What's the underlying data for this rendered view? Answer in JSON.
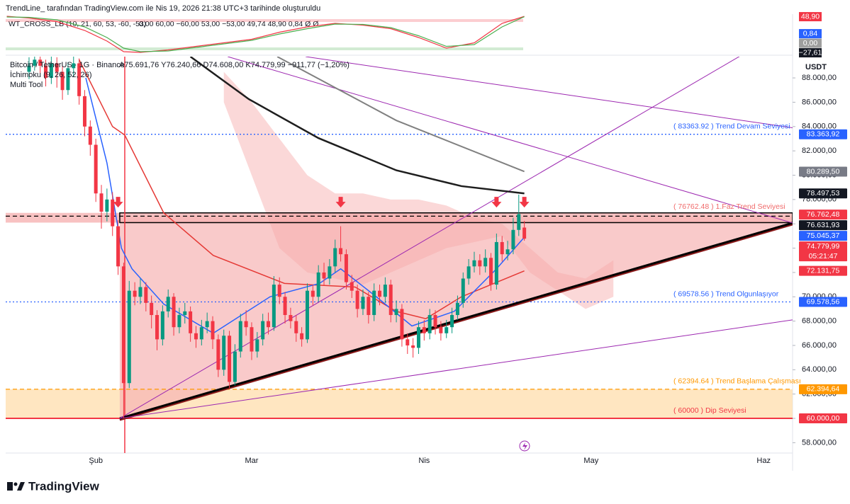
{
  "header": {
    "credit": "TrendLine_ tarafından TradingView.com ile Nis 19, 2026 21:38 UTC+3 tarihinde oluşturuldu",
    "logo": "TradingView"
  },
  "indicator": {
    "title": "WT_CROSS_LB (10, 21, 60, 53, -60, -53)",
    "readout": "0,00  60,00  −60,00  53,00  −53,00  49,74  48,90  0,84  Ø  Ø",
    "ylim": [
      -56,
      56
    ],
    "x": [
      -4,
      0,
      5,
      10,
      14,
      17,
      20,
      25,
      30,
      35,
      40,
      45,
      50,
      55,
      60,
      65,
      70,
      75,
      80,
      85,
      89
    ],
    "series": [
      {
        "color": "#f23645",
        "values": [
          50,
          45,
          35,
          10,
          -20,
          -50,
          -52,
          -45,
          -35,
          -25,
          -15,
          5,
          20,
          30,
          25,
          15,
          -10,
          -40,
          -25,
          30,
          49.74
        ]
      },
      {
        "color": "#4caf50",
        "values": [
          48,
          47,
          40,
          20,
          -10,
          -40,
          -50,
          -48,
          -38,
          -28,
          -18,
          0,
          15,
          28,
          27,
          18,
          -5,
          -35,
          -30,
          20,
          48.9
        ]
      }
    ],
    "axis_labels": [
      {
        "value": 48.9,
        "label": "48,90",
        "color": "#f23645"
      },
      {
        "value": 0.84,
        "label": "0,84",
        "color": "#2962ff"
      },
      {
        "value": 0,
        "label": "0,00",
        "color": "#9e9e9e"
      },
      {
        "value": -27.61,
        "label": "−27,61",
        "color": "#131722"
      }
    ]
  },
  "chart_data": {
    "type": "candlestick",
    "symbol": "Bitcoin / TetherUS · 1G · Binance",
    "ohlc_readout": "A75.691,76  Y76.240,66  D74.608,00  K74.779,99  −911,77 (−1,20%)",
    "indicators": [
      "İchimoku (9, 26, 52, 26)",
      "Multi Tool"
    ],
    "currency": "USDT",
    "up_color": "#089981",
    "down_color": "#f23645",
    "xlim": [
      -4.2,
      137.2
    ],
    "ylim": [
      57150,
      89750
    ],
    "grid": false,
    "xticks": [
      {
        "value": 12,
        "label": "Şub"
      },
      {
        "value": 40,
        "label": "Mar"
      },
      {
        "value": 71,
        "label": "Nis"
      },
      {
        "value": 101,
        "label": "May"
      },
      {
        "value": 132,
        "label": "Haz"
      }
    ],
    "yticks": [
      {
        "value": 58000,
        "label": "58.000,00"
      },
      {
        "value": 60000,
        "label": "60.000,00"
      },
      {
        "value": 62000,
        "label": "62.000,00"
      },
      {
        "value": 64000,
        "label": "64.000,00"
      },
      {
        "value": 66000,
        "label": "66.000,00"
      },
      {
        "value": 68000,
        "label": "68.000,00"
      },
      {
        "value": 70000,
        "label": "70.000,00"
      },
      {
        "value": 72000,
        "label": "72.000,00"
      },
      {
        "value": 74000,
        "label": "74.000,00"
      },
      {
        "value": 76000,
        "label": "76.000,00"
      },
      {
        "value": 78000,
        "label": "78.000,00"
      },
      {
        "value": 80000,
        "label": "80.000,00"
      },
      {
        "value": 82000,
        "label": "82.000,00"
      },
      {
        "value": 84000,
        "label": "84.000,00"
      },
      {
        "value": 86000,
        "label": "86.000,00"
      },
      {
        "value": 88000,
        "label": "88.000,00"
      }
    ],
    "open": [
      88500,
      89000,
      89500,
      89000,
      88000,
      89200,
      88500,
      87000,
      88800,
      89200,
      86500,
      84000,
      82500,
      78500,
      77000,
      78000,
      75800,
      72500,
      62900,
      70500,
      70000,
      70800,
      69500,
      68500,
      66500,
      68800,
      70000,
      67500,
      68500,
      68800,
      67000,
      66500,
      67500,
      68000,
      66500,
      64000,
      66800,
      63000,
      65500,
      68000,
      67500,
      65500,
      66500,
      68000,
      67500,
      71000,
      70000,
      68500,
      68000,
      67000,
      66500,
      70500,
      70000,
      72000,
      71500,
      72500,
      74000,
      73500,
      71200,
      70500,
      69000,
      70000,
      68500,
      70500,
      70000,
      71000,
      68500,
      69000,
      66500,
      66000,
      65800,
      67500,
      67000,
      68500,
      67500,
      67000,
      67500,
      68500,
      69500,
      71500,
      72500,
      73000,
      72500,
      73200,
      71000,
      74500,
      73500,
      73900,
      75500,
      75691.76
    ],
    "high": [
      89700,
      90100,
      90000,
      89500,
      89800,
      89700,
      89000,
      89300,
      89900,
      89600,
      87000,
      84500,
      83000,
      79200,
      78900,
      78600,
      76300,
      72800,
      71300,
      71200,
      71500,
      71200,
      70100,
      68900,
      69300,
      70600,
      70300,
      69100,
      69500,
      69200,
      67600,
      68100,
      68700,
      68400,
      66900,
      67300,
      67200,
      66100,
      68600,
      68900,
      67900,
      67100,
      68600,
      68700,
      71700,
      71600,
      70400,
      69100,
      68500,
      67500,
      71100,
      71000,
      72600,
      72800,
      73100,
      74700,
      75800,
      73900,
      71800,
      71000,
      70600,
      70400,
      71100,
      71000,
      71600,
      71400,
      69700,
      69400,
      67000,
      66600,
      68000,
      68100,
      69000,
      68900,
      68000,
      68100,
      69100,
      70100,
      72000,
      73100,
      73700,
      73500,
      73900,
      73600,
      75200,
      75000,
      74600,
      76500,
      78400,
      76240.66
    ],
    "low": [
      87900,
      88600,
      88400,
      87300,
      87500,
      87200,
      86200,
      86600,
      88100,
      85800,
      83200,
      81600,
      77800,
      75600,
      76200,
      75000,
      71800,
      60000,
      62500,
      69300,
      69400,
      68800,
      67400,
      65600,
      66000,
      68300,
      66800,
      67000,
      67800,
      66300,
      65800,
      66000,
      67000,
      65700,
      63400,
      63500,
      62500,
      62700,
      65000,
      66800,
      64800,
      65000,
      66000,
      66900,
      67200,
      69400,
      67800,
      67400,
      66300,
      65900,
      66200,
      69300,
      69600,
      70900,
      71000,
      72000,
      72900,
      70600,
      69900,
      68300,
      68500,
      67800,
      68000,
      69300,
      69500,
      67900,
      67900,
      65900,
      65300,
      65000,
      65300,
      66400,
      66500,
      66900,
      66400,
      66600,
      67000,
      68100,
      69100,
      71000,
      72000,
      71800,
      72000,
      70500,
      70600,
      72900,
      73000,
      73500,
      75000,
      74608
    ],
    "close": [
      89000,
      89500,
      89000,
      88000,
      89200,
      88500,
      87000,
      88800,
      89200,
      86500,
      84000,
      82500,
      78500,
      77000,
      78000,
      75800,
      72500,
      62900,
      70500,
      70000,
      70800,
      69500,
      68500,
      66500,
      68800,
      70000,
      67500,
      68500,
      68800,
      67000,
      66500,
      67500,
      68000,
      66500,
      64000,
      66800,
      63000,
      65500,
      68000,
      67500,
      65500,
      66500,
      68000,
      67500,
      71000,
      70000,
      68500,
      68000,
      67000,
      66500,
      70500,
      70000,
      72000,
      71500,
      72500,
      74000,
      73500,
      71200,
      70500,
      69000,
      70000,
      68500,
      70500,
      70000,
      71000,
      68500,
      69000,
      66500,
      66000,
      65800,
      67500,
      67000,
      68500,
      67500,
      67000,
      67500,
      68500,
      69500,
      71500,
      72500,
      73000,
      72500,
      73200,
      71000,
      74500,
      73500,
      73900,
      75500,
      76800,
      74779.99
    ],
    "cloud": {
      "color": "#f7a8a8",
      "x": [
        35,
        40,
        45,
        50,
        55,
        60,
        65,
        70,
        75,
        80,
        85,
        90,
        95,
        100,
        105
      ],
      "upper": [
        88500,
        86000,
        83000,
        80000,
        78500,
        78500,
        78000,
        78000,
        77500,
        76500,
        76000,
        74000,
        72000,
        71500,
        73000
      ],
      "lower": [
        86000,
        80000,
        74000,
        72000,
        71500,
        71000,
        72000,
        73000,
        74000,
        74500,
        75000,
        72000,
        70500,
        69000,
        70000
      ]
    },
    "lines": [
      {
        "color": "#1e1e1e",
        "width": 2.5,
        "x": [
          29,
          39.5,
          52,
          66,
          77.7,
          89
        ],
        "values": [
          89750,
          86250,
          83050,
          80400,
          79100,
          78500
        ]
      },
      {
        "color": "#808080",
        "width": 2,
        "x": [
          44.6,
          66,
          89
        ],
        "values": [
          89750,
          84500,
          80300
        ]
      },
      {
        "color": "#e53935",
        "width": 1.5,
        "x": [
          9,
          15,
          17.2,
          24.2,
          33.1,
          45.9,
          58.6,
          66,
          71.3,
          77.7,
          89
        ],
        "values": [
          89500,
          84000,
          83300,
          76900,
          73400,
          71100,
          70800,
          68800,
          68200,
          70000,
          72131.75
        ]
      },
      {
        "color": "#2962ff",
        "width": 1.5,
        "x": [
          10.2,
          14,
          16.6,
          18.5,
          24.2,
          33.1,
          43.3,
          52.2,
          56,
          62.4,
          68.8,
          76.4,
          84,
          89
        ],
        "values": [
          88000,
          81000,
          74000,
          72300,
          69400,
          67000,
          70000,
          71100,
          72300,
          70000,
          67600,
          68800,
          72300,
          74900
        ]
      }
    ],
    "zones": [
      {
        "from": 60000,
        "to": 62394.64,
        "color": "#ffe0b2"
      },
      {
        "from": 76100,
        "to": 76900,
        "color": "#f6b3b3"
      }
    ],
    "fill_region": {
      "color": "#f7b4b4",
      "x": [
        16.3,
        16.3,
        137.2,
        137.2
      ],
      "values": [
        60000,
        76631.93,
        76631.93,
        76070
      ]
    },
    "trendlines": [
      {
        "color": "#000",
        "width": 3,
        "points": [
          [
            16.3,
            60000
          ],
          [
            137.2,
            76070
          ]
        ]
      },
      {
        "color": "#9c27b0",
        "width": 1,
        "points": [
          [
            16.3,
            60000
          ],
          [
            128,
            89860
          ]
        ]
      },
      {
        "color": "#9c27b0",
        "width": 1,
        "points": [
          [
            16.3,
            60000
          ],
          [
            137.2,
            68100
          ]
        ]
      },
      {
        "color": "#9c27b0",
        "width": 1,
        "points": [
          [
            35.7,
            89750
          ],
          [
            137.2,
            76070
          ]
        ]
      },
      {
        "color": "#9c27b0",
        "width": 1,
        "points": [
          [
            49.7,
            89750
          ],
          [
            137.2,
            83900
          ]
        ]
      }
    ],
    "vlines": [
      {
        "x": 17.2,
        "color": "#f23645"
      }
    ],
    "markers": [
      {
        "x": 16,
        "value": 77400
      },
      {
        "x": 56,
        "value": 77400
      },
      {
        "x": 84,
        "value": 77400
      },
      {
        "x": 89,
        "value": 77400
      }
    ],
    "levels": [
      {
        "value": 83363.92,
        "label": "( 83363.92  ) Trend Devam Seviyesi",
        "color": "#2962ff",
        "style": "dotted"
      },
      {
        "value": 76762.48,
        "label": "( 76762.48  ) 1.Faz Trend Seviyesi",
        "color": "#f06a6a",
        "style": "none"
      },
      {
        "value": 76631.93,
        "label": null,
        "color": "#000",
        "style": "dashed"
      },
      {
        "value": 69578.56,
        "label": "( 69578.56  ) Trend Olgunlaşıyor",
        "color": "#2962ff",
        "style": "dotted"
      },
      {
        "value": 62394.64,
        "label": "( 62394.64  ) Trend Başlama Çalışması",
        "color": "#ff9800",
        "style": "dashed"
      },
      {
        "value": 60000,
        "label": "( 60000  ) Dip Seviyesi",
        "color": "#f23645",
        "style": "solid"
      }
    ],
    "price_labels": [
      {
        "value": 83363.92,
        "label": "83.363,92",
        "color": "#2962ff"
      },
      {
        "value": 80289.5,
        "label": "80.289,50",
        "color": "#787b86"
      },
      {
        "value": 78497.53,
        "label": "78.497,53",
        "color": "#131722"
      },
      {
        "value": 76762.48,
        "label": "76.762,48",
        "color": "#f23645"
      },
      {
        "value": 76631.93,
        "label": "76.631,93",
        "color": "#131722"
      },
      {
        "value": 75045.37,
        "label": "75.045,37",
        "color": "#2962ff"
      },
      {
        "value": 74779.99,
        "label": "74.779,99",
        "color": "#f23645",
        "countdown": "05:21:47"
      },
      {
        "value": 72131.75,
        "label": "72.131,75",
        "color": "#f23645"
      },
      {
        "value": 69578.56,
        "label": "69.578,56",
        "color": "#2962ff"
      },
      {
        "value": 62394.64,
        "label": "62.394,64",
        "color": "#ff9800"
      },
      {
        "value": 60000,
        "label": "60.000,00",
        "color": "#f23645"
      }
    ]
  }
}
